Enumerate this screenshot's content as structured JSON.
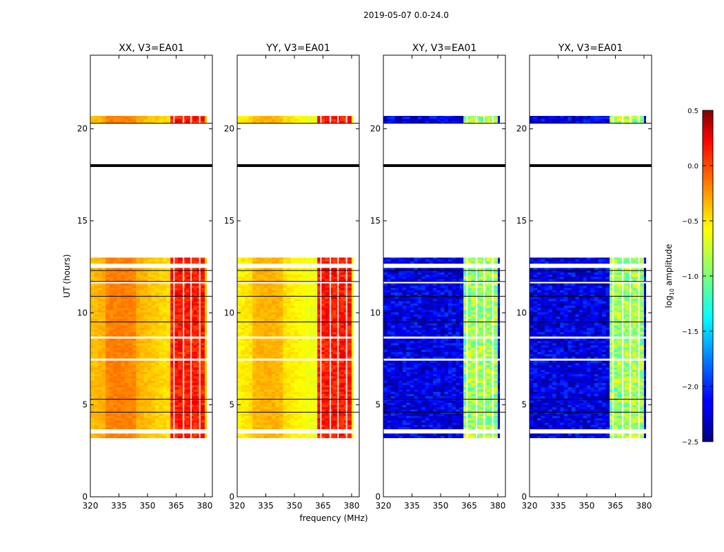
{
  "chart_data": {
    "type": "heatmap",
    "suptitle": "2019-05-07 0.0-24.0",
    "xlabel": "frequency (MHz)",
    "ylabel": "UT (hours)",
    "xlim": [
      320,
      384
    ],
    "ylim": [
      0,
      24
    ],
    "xticks": [
      320,
      335,
      350,
      365,
      380
    ],
    "yticks": [
      0,
      5,
      10,
      15,
      20
    ],
    "panels": [
      {
        "title": "XX, V3=EA01",
        "product": "parallel",
        "base_log_amp": -0.45
      },
      {
        "title": "YY, V3=EA01",
        "product": "parallel",
        "base_log_amp": -0.6
      },
      {
        "title": "XY, V3=EA01",
        "product": "cross",
        "base_log_amp": -2.2
      },
      {
        "title": "YX, V3=EA01",
        "product": "cross",
        "base_log_amp": -2.2
      }
    ],
    "data_time_ranges_hours": [
      [
        3.2,
        13.0
      ],
      [
        20.3,
        20.7
      ]
    ],
    "flagged_line_hours": [
      18.0
    ],
    "strong_signal_band_mhz": [
      362,
      380
    ],
    "colorbar": {
      "label": "log10 amplitude",
      "label_main": "log",
      "label_sub": "10",
      "label_rest": " amplitude",
      "range": [
        -2.5,
        0.5
      ],
      "ticks": [
        0.5,
        0.0,
        -0.5,
        -1.0,
        -1.5,
        -2.0,
        -2.5
      ],
      "tick_labels": [
        "0.5",
        "0.0",
        "−0.5",
        "−1.0",
        "−1.5",
        "−2.0",
        "−2.5"
      ],
      "colormap": "jet"
    }
  }
}
